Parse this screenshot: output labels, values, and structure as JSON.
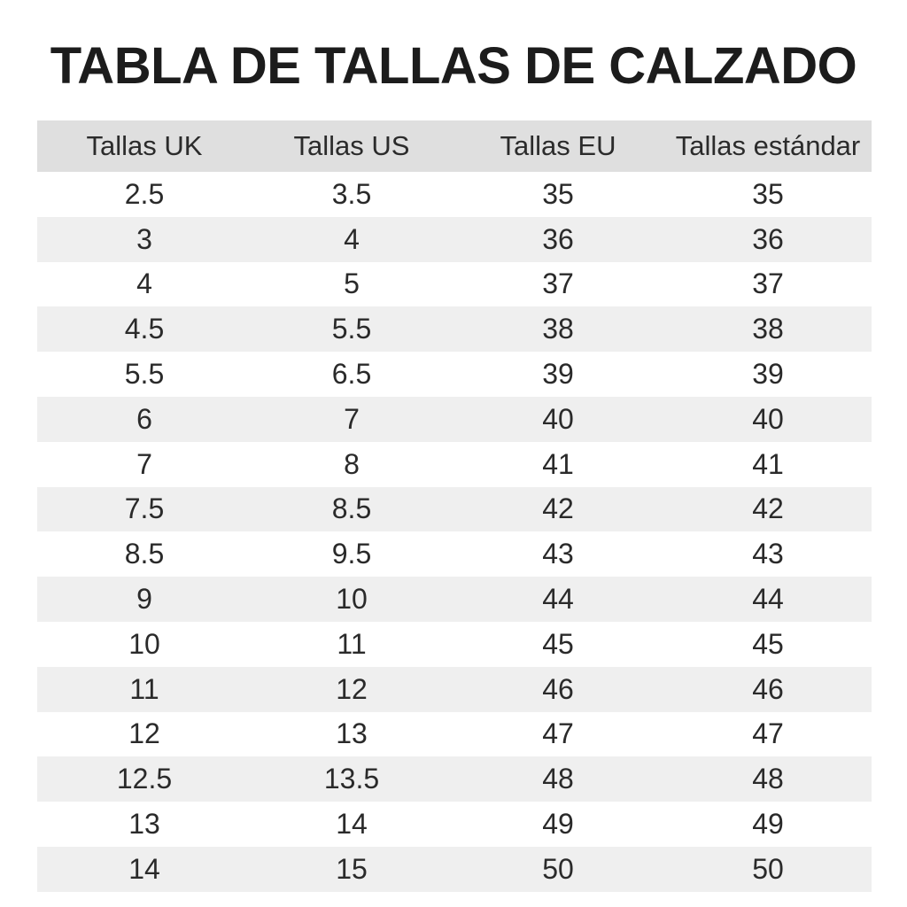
{
  "title": "TABLA DE TALLAS DE CALZADO",
  "table": {
    "headers": [
      "Tallas UK",
      "Tallas US",
      "Tallas EU",
      "Tallas estándar"
    ],
    "rows": [
      [
        "2.5",
        "3.5",
        "35",
        "35"
      ],
      [
        "3",
        "4",
        "36",
        "36"
      ],
      [
        "4",
        "5",
        "37",
        "37"
      ],
      [
        "4.5",
        "5.5",
        "38",
        "38"
      ],
      [
        "5.5",
        "6.5",
        "39",
        "39"
      ],
      [
        "6",
        "7",
        "40",
        "40"
      ],
      [
        "7",
        "8",
        "41",
        "41"
      ],
      [
        "7.5",
        "8.5",
        "42",
        "42"
      ],
      [
        "8.5",
        "9.5",
        "43",
        "43"
      ],
      [
        "9",
        "10",
        "44",
        "44"
      ],
      [
        "10",
        "11",
        "45",
        "45"
      ],
      [
        "11",
        "12",
        "46",
        "46"
      ],
      [
        "12",
        "13",
        "47",
        "47"
      ],
      [
        "12.5",
        "13.5",
        "48",
        "48"
      ],
      [
        "13",
        "14",
        "49",
        "49"
      ],
      [
        "14",
        "15",
        "50",
        "50"
      ]
    ]
  },
  "colors": {
    "header_bg": "#dfdfdf",
    "stripe_bg": "#efefef",
    "row_bg": "#ffffff",
    "text": "#1f1f1f"
  }
}
